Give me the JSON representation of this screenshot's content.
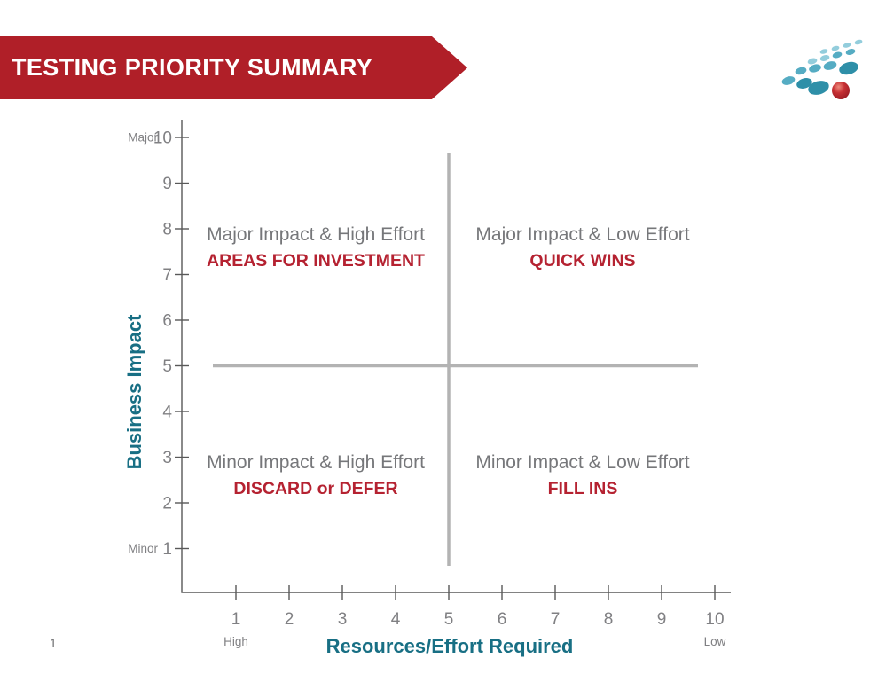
{
  "slide": {
    "title": "TESTING PRIORITY SUMMARY",
    "page_number": "1"
  },
  "colors": {
    "banner_red": "#B01F28",
    "accent_red": "#B52231",
    "teal": "#186F84",
    "quadrant_gray": "#76777A",
    "axis_gray": "#595959",
    "tick_gray": "#808083",
    "crosshair_gray": "#B3B3B3",
    "logo_teal_light": "#93CDDC",
    "logo_teal_mid": "#55ACC3",
    "logo_teal_dark": "#2E8FA8",
    "logo_red": "#C62F33"
  },
  "axis_titles": {
    "x": "Resources/Effort Required",
    "y": "Business Impact"
  },
  "quadrants": {
    "top_left": {
      "line1": "Major Impact & High Effort",
      "line2": "AREAS FOR INVESTMENT"
    },
    "top_right": {
      "line1": "Major Impact & Low Effort",
      "line2": "QUICK WINS"
    },
    "bottom_left": {
      "line1": "Minor Impact & High Effort",
      "line2": "DISCARD or DEFER"
    },
    "bottom_right": {
      "line1": "Minor Impact & Low Effort",
      "line2": "FILL INS"
    }
  },
  "chart_data": {
    "type": "scatter",
    "title": "TESTING PRIORITY SUMMARY",
    "xlabel": "Resources/Effort Required",
    "ylabel": "Business Impact",
    "xlim": [
      0,
      10.5
    ],
    "ylim": [
      0,
      10.5
    ],
    "x_ticks": [
      1,
      2,
      3,
      4,
      5,
      6,
      7,
      8,
      9,
      10
    ],
    "y_ticks": [
      1,
      2,
      3,
      4,
      5,
      6,
      7,
      8,
      9,
      10
    ],
    "x_end_labels": {
      "1": "High",
      "10": "Low"
    },
    "y_end_labels": {
      "1": "Minor",
      "10": "Major"
    },
    "reference_lines": {
      "vertical_x": 5,
      "horizontal_y": 5
    },
    "points": [],
    "grid": false,
    "legend": false,
    "quadrant_labels": [
      {
        "position": "top-left",
        "x_range": [
          1,
          5
        ],
        "y_range": [
          5,
          10
        ],
        "description": "Major Impact & High Effort",
        "label": "AREAS FOR INVESTMENT"
      },
      {
        "position": "top-right",
        "x_range": [
          5,
          10
        ],
        "y_range": [
          5,
          10
        ],
        "description": "Major Impact & Low Effort",
        "label": "QUICK WINS"
      },
      {
        "position": "bottom-left",
        "x_range": [
          1,
          5
        ],
        "y_range": [
          1,
          5
        ],
        "description": "Minor Impact & High Effort",
        "label": "DISCARD or DEFER"
      },
      {
        "position": "bottom-right",
        "x_range": [
          5,
          10
        ],
        "y_range": [
          1,
          5
        ],
        "description": "Minor Impact & Low Effort",
        "label": "FILL INS"
      }
    ]
  }
}
